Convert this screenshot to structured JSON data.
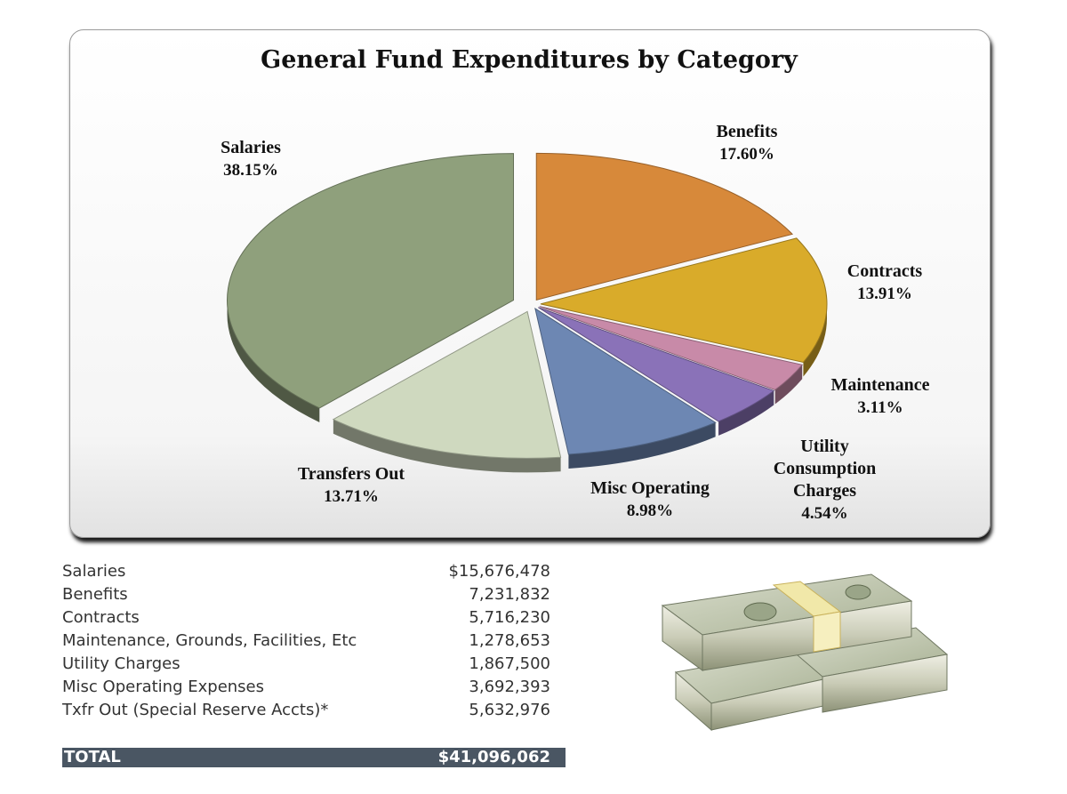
{
  "chart_data": {
    "type": "pie",
    "title": "General Fund Expenditures by Category",
    "slices": [
      {
        "label": "Benefits",
        "percent": 17.6,
        "pct_text": "17.60%",
        "color": "#d7893a"
      },
      {
        "label": "Contracts",
        "percent": 13.91,
        "pct_text": "13.91%",
        "color": "#d9ab2a"
      },
      {
        "label": "Maintenance",
        "percent": 3.11,
        "pct_text": "3.11%",
        "color": "#c88aa8"
      },
      {
        "label": "Utility Consumption Charges",
        "percent": 4.54,
        "pct_text": "4.54%",
        "color": "#8a72b8"
      },
      {
        "label": "Misc Operating",
        "percent": 8.98,
        "pct_text": "8.98%",
        "color": "#6d87b3"
      },
      {
        "label": "Transfers Out",
        "percent": 13.71,
        "pct_text": "13.71%",
        "color": "#cfd9bf"
      },
      {
        "label": "Salaries",
        "percent": 38.15,
        "pct_text": "38.15%",
        "color": "#8fa07c"
      }
    ]
  },
  "table": {
    "rows": [
      {
        "category": "Salaries",
        "amount": "$15,676,478"
      },
      {
        "category": "Benefits",
        "amount": "7,231,832"
      },
      {
        "category": "Contracts",
        "amount": "5,716,230"
      },
      {
        "category": "Maintenance, Grounds, Facilities, Etc",
        "amount": "1,278,653"
      },
      {
        "category": "Utility Charges",
        "amount": "1,867,500"
      },
      {
        "category": "Misc Operating Expenses",
        "amount": "3,692,393"
      },
      {
        "category": "Txfr Out (Special Reserve Accts)*",
        "amount": "5,632,976"
      }
    ],
    "total_label": "TOTAL",
    "total_amount": "$41,096,062"
  },
  "colors": {
    "total_bar": "#4a5663",
    "money": "#b9c0a8"
  }
}
